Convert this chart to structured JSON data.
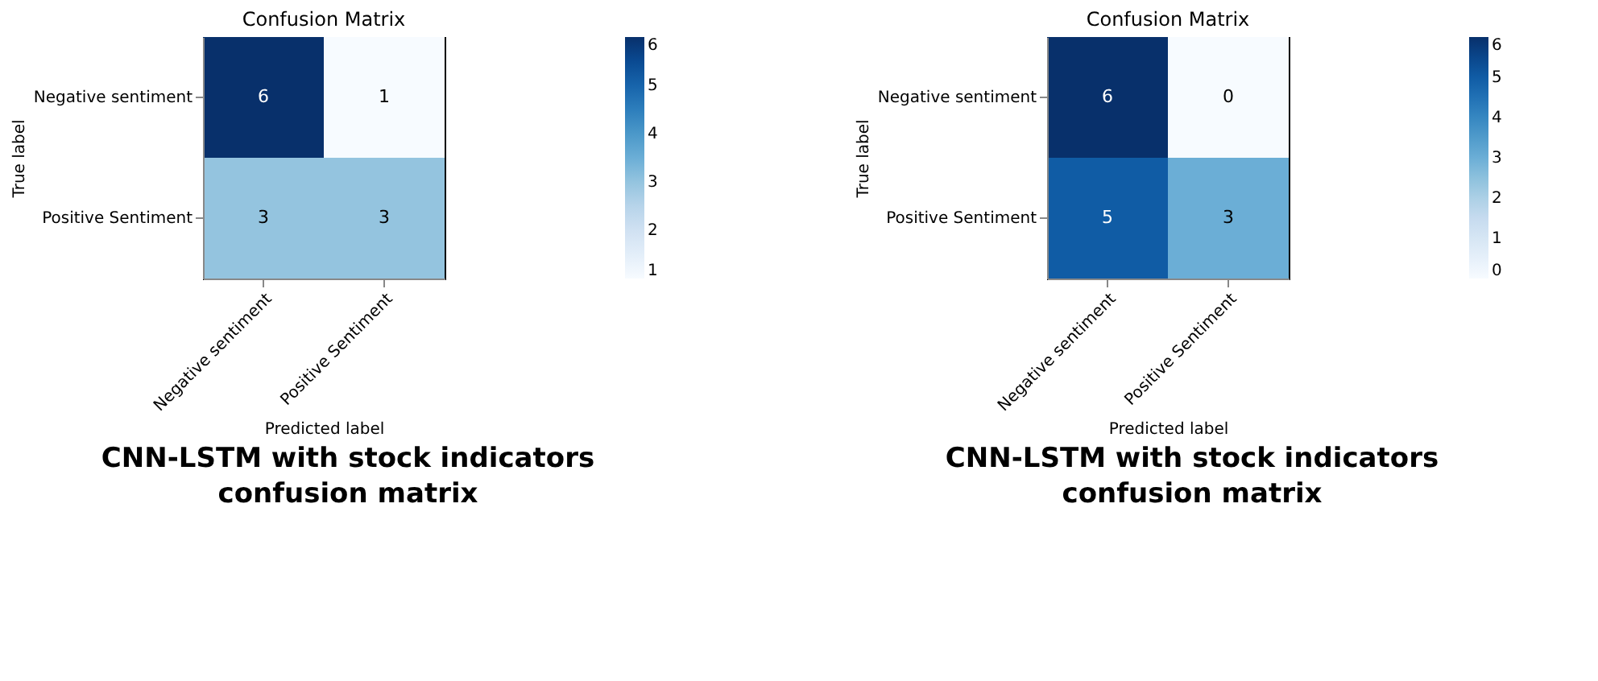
{
  "chart_data": [
    {
      "type": "heatmap",
      "title": "Confusion Matrix",
      "xlabel": "Predicted label",
      "ylabel": "True label",
      "categories": [
        "Negative sentiment",
        "Positive Sentiment"
      ],
      "y_categories": [
        "Negative sentiment",
        "Positive Sentiment"
      ],
      "cells": [
        [
          6,
          1
        ],
        [
          3,
          3
        ]
      ],
      "clim": [
        1,
        6
      ],
      "cticks": [
        1,
        2,
        3,
        4,
        5,
        6
      ],
      "data_labels": true,
      "annotations": [
        "CNN-LSTM with stock indicators confusion matrix"
      ]
    },
    {
      "type": "heatmap",
      "title": "Confusion Matrix",
      "xlabel": "Predicted label",
      "ylabel": "True label",
      "categories": [
        "Negative sentiment",
        "Positive Sentiment"
      ],
      "y_categories": [
        "Negative sentiment",
        "Positive Sentiment"
      ],
      "cells": [
        [
          6,
          0
        ],
        [
          5,
          3
        ]
      ],
      "clim": [
        0,
        6
      ],
      "cticks": [
        0,
        1,
        2,
        3,
        4,
        5,
        6
      ],
      "data_labels": true,
      "annotations": [
        "CNN-LSTM with stock indicators confusion matrix"
      ]
    }
  ]
}
